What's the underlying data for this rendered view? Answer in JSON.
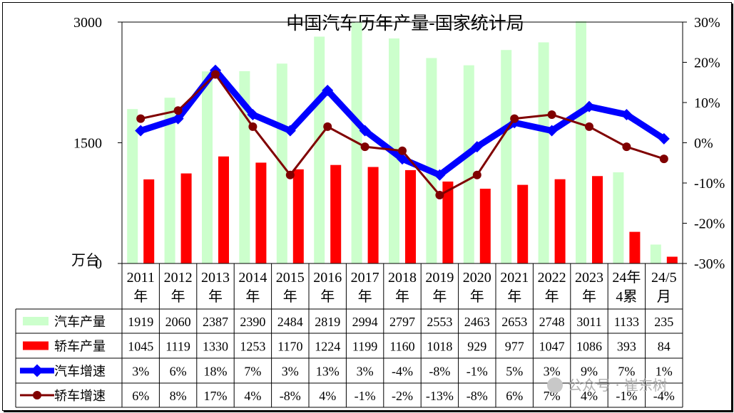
{
  "chart_data": {
    "type": "bar",
    "title": "中国汽车历年产量-国家统计局",
    "y_unit": "万台",
    "categories": [
      [
        "2011",
        "年"
      ],
      [
        "2012",
        "年"
      ],
      [
        "2013",
        "年"
      ],
      [
        "2014",
        "年"
      ],
      [
        "2015",
        "年"
      ],
      [
        "2016",
        "年"
      ],
      [
        "2017",
        "年"
      ],
      [
        "2018",
        "年"
      ],
      [
        "2019",
        "年"
      ],
      [
        "2020",
        "年"
      ],
      [
        "2021",
        "年"
      ],
      [
        "2022",
        "年"
      ],
      [
        "2023",
        "年"
      ],
      [
        "24年",
        "4累"
      ],
      [
        "24/5",
        "月"
      ]
    ],
    "ylim_left": [
      0,
      3000
    ],
    "yticks_left": [
      "0",
      "1500",
      "3000"
    ],
    "ylim_right": [
      -30,
      30
    ],
    "yticks_right": [
      "30%",
      "20%",
      "10%",
      "0%",
      "-10%",
      "-20%",
      "-30%"
    ],
    "series": [
      {
        "name": "汽车产量",
        "kind": "bar",
        "axis": "left",
        "color": "#ccffcc",
        "values": [
          1919,
          2060,
          2387,
          2390,
          2484,
          2819,
          2994,
          2797,
          2553,
          2463,
          2653,
          2748,
          3011,
          1133,
          235
        ],
        "labels": [
          "1919",
          "2060",
          "2387",
          "2390",
          "2484",
          "2819",
          "2994",
          "2797",
          "2553",
          "2463",
          "2653",
          "2748",
          "3011",
          "1133",
          "235"
        ]
      },
      {
        "name": "轿车产量",
        "kind": "bar",
        "axis": "left",
        "color": "#ff0000",
        "values": [
          1045,
          1119,
          1330,
          1253,
          1170,
          1224,
          1199,
          1160,
          1018,
          929,
          977,
          1047,
          1086,
          393,
          84
        ],
        "labels": [
          "1045",
          "1119",
          "1330",
          "1253",
          "1170",
          "1224",
          "1199",
          "1160",
          "1018",
          "929",
          "977",
          "1047",
          "1086",
          "393",
          "84"
        ]
      },
      {
        "name": "汽车增速",
        "kind": "line",
        "axis": "right",
        "color": "#0000ff",
        "values": [
          3,
          6,
          18,
          7,
          3,
          13,
          3,
          -4,
          -8,
          -1,
          5,
          3,
          9,
          7,
          1
        ],
        "labels": [
          "3%",
          "6%",
          "18%",
          "7%",
          "3%",
          "13%",
          "3%",
          "-4%",
          "-8%",
          "-1%",
          "5%",
          "3%",
          "9%",
          "7%",
          "1%"
        ]
      },
      {
        "name": "轿车增速",
        "kind": "line",
        "axis": "right",
        "color": "#800000",
        "values": [
          6,
          8,
          17,
          4,
          -8,
          4,
          -1,
          -2,
          -13,
          -8,
          6,
          7,
          4,
          -1,
          -4
        ],
        "labels": [
          "6%",
          "8%",
          "17%",
          "4%",
          "-8%",
          "4%",
          "-1%",
          "-2%",
          "-13%",
          "-8%",
          "6%",
          "7%",
          "4%",
          "-1%",
          "-4%"
        ]
      }
    ],
    "grid": false,
    "legend": "table-left"
  },
  "watermark": "公众号 · 崔东树"
}
